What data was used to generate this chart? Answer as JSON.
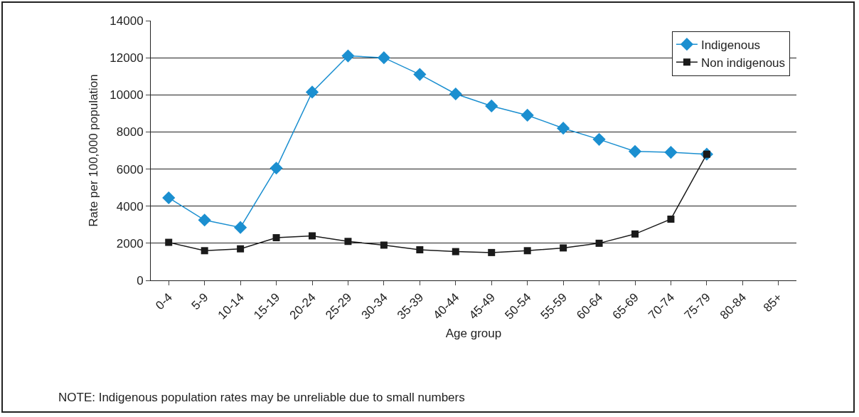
{
  "chart_data": {
    "type": "line",
    "xlabel": "Age group",
    "ylabel": "Rate per 100,000 population",
    "categories": [
      "0-4",
      "5-9",
      "10-14",
      "15-19",
      "20-24",
      "25-29",
      "30-34",
      "35-39",
      "40-44",
      "45-49",
      "50-54",
      "55-59",
      "60-64",
      "65-69",
      "70-74",
      "75-79",
      "80-84",
      "85+"
    ],
    "series": [
      {
        "name": "Indigenous",
        "color": "#1b8fd0",
        "marker": "diamond",
        "values": [
          4450,
          3250,
          2850,
          6050,
          10150,
          12100,
          12000,
          11100,
          10050,
          9400,
          8900,
          8200,
          7600,
          6950,
          6900,
          6800,
          null,
          null
        ]
      },
      {
        "name": "Non indigenous",
        "color": "#1a1a1a",
        "marker": "square",
        "values": [
          2050,
          1600,
          1700,
          2300,
          2400,
          2100,
          1900,
          1650,
          1550,
          1500,
          1600,
          1750,
          2000,
          2500,
          3300,
          6800,
          null,
          null
        ]
      }
    ],
    "ylim": [
      0,
      14000
    ],
    "yticks": [
      0,
      2000,
      4000,
      6000,
      8000,
      10000,
      12000,
      14000
    ],
    "grid": "y",
    "legend": "top right",
    "line_style": "solid",
    "annotations": [
      "NOTE: Indigenous population rates may be unreliable due to small numbers"
    ]
  }
}
